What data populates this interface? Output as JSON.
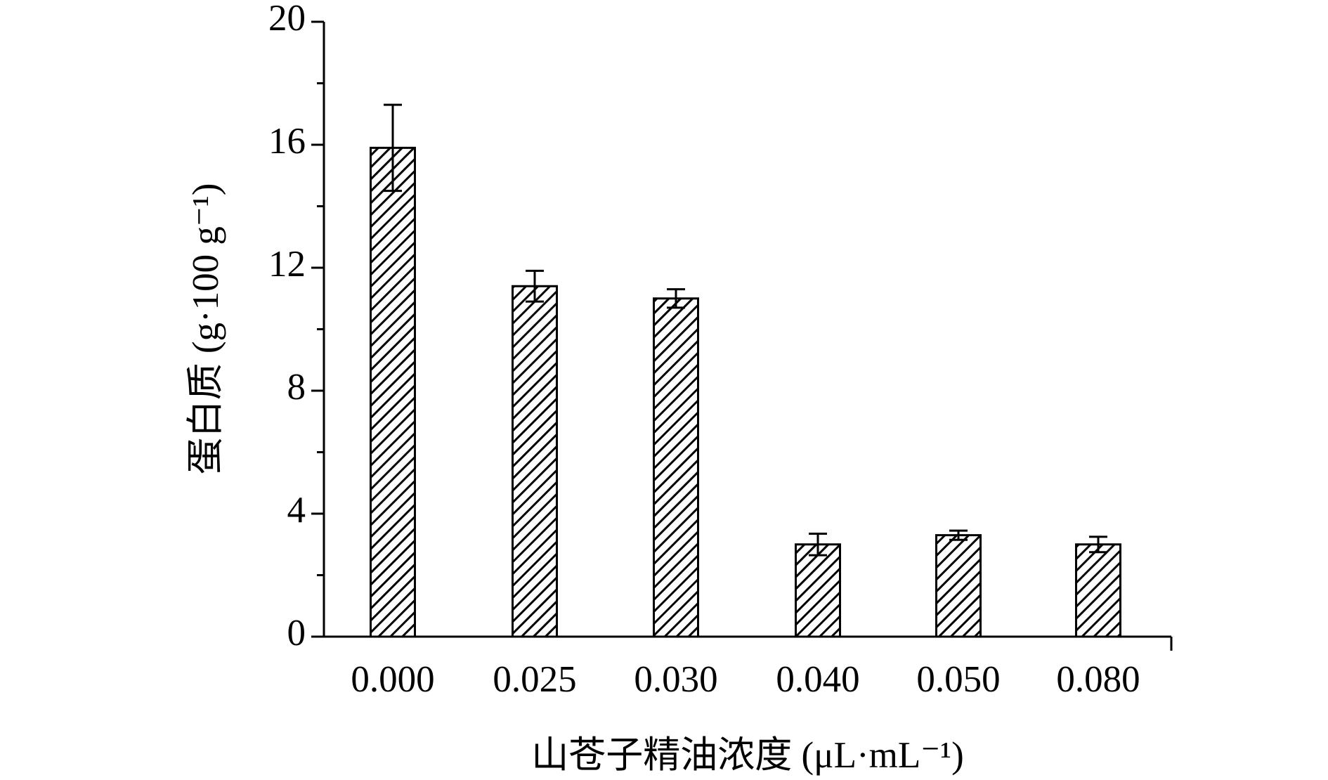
{
  "chart_data": {
    "type": "bar",
    "y_label": "蛋白质 (g·100 g⁻¹)",
    "x_label": "山苍子精油浓度 (μL·mL⁻¹)",
    "categories": [
      "0.000",
      "0.025",
      "0.030",
      "0.040",
      "0.050",
      "0.080"
    ],
    "values": [
      15.9,
      11.4,
      11.0,
      3.0,
      3.3,
      3.0
    ],
    "errors": [
      1.4,
      0.5,
      0.3,
      0.35,
      0.15,
      0.25
    ],
    "color": "#000000",
    "ylim": [
      0,
      20
    ],
    "yticks": [
      0,
      4,
      8,
      12,
      16,
      20
    ],
    "minor_yticks": [
      2,
      6,
      10,
      14,
      18
    ],
    "grid": false
  }
}
